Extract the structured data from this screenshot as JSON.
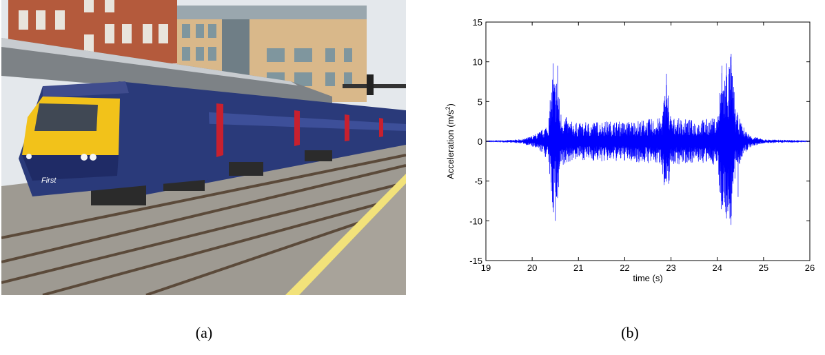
{
  "captions": {
    "a": "(a)",
    "b": "(b)"
  },
  "photo": {
    "subject": "train-at-station",
    "livery_text": "First",
    "colors": {
      "body": "#2a3a7a",
      "nose": "#f2c21a",
      "door": "#c8202e",
      "building": "#b45a3c",
      "sky": "#e4e8ec",
      "ballast": "#9e9a92",
      "platform": "#a8a39a"
    }
  },
  "chart_data": {
    "type": "line",
    "title": "",
    "xlabel": "time (s)",
    "ylabel": "Acceleration (m/s²)",
    "ylabel_main": "Acceleration (m/s",
    "ylabel_sup": "2",
    "ylabel_close": ")",
    "xlim": [
      19,
      26
    ],
    "ylim": [
      -15,
      15
    ],
    "xticks": [
      19,
      20,
      21,
      22,
      23,
      24,
      25,
      26
    ],
    "yticks": [
      -15,
      -10,
      -5,
      0,
      5,
      10,
      15
    ],
    "xtick_labels": [
      "19",
      "20",
      "21",
      "22",
      "23",
      "24",
      "25",
      "26"
    ],
    "ytick_labels": [
      "-15",
      "-10",
      "-5",
      "0",
      "5",
      "10",
      "15"
    ],
    "grid": false,
    "series_color": "#0000ff",
    "envelope": {
      "x": [
        19.0,
        19.5,
        19.8,
        20.0,
        20.2,
        20.35,
        20.45,
        20.5,
        20.55,
        20.6,
        20.8,
        21.0,
        21.5,
        22.0,
        22.5,
        22.8,
        22.9,
        23.0,
        23.5,
        24.0,
        24.1,
        24.2,
        24.3,
        24.4,
        24.55,
        24.7,
        25.0,
        26.0
      ],
      "y": [
        0.1,
        0.15,
        0.3,
        0.7,
        1.4,
        2.5,
        9.8,
        7.0,
        9.5,
        4.0,
        2.6,
        2.3,
        2.6,
        2.5,
        2.8,
        3.0,
        8.5,
        3.0,
        2.7,
        3.0,
        9.5,
        9.8,
        11.0,
        4.0,
        2.0,
        0.8,
        0.25,
        0.1
      ]
    },
    "negative_peaks": [
      {
        "x": 20.5,
        "y": -10.0
      },
      {
        "x": 20.45,
        "y": -5.5
      },
      {
        "x": 22.85,
        "y": -5.5
      },
      {
        "x": 24.2,
        "y": -9.7
      },
      {
        "x": 24.45,
        "y": -7.0
      }
    ]
  }
}
